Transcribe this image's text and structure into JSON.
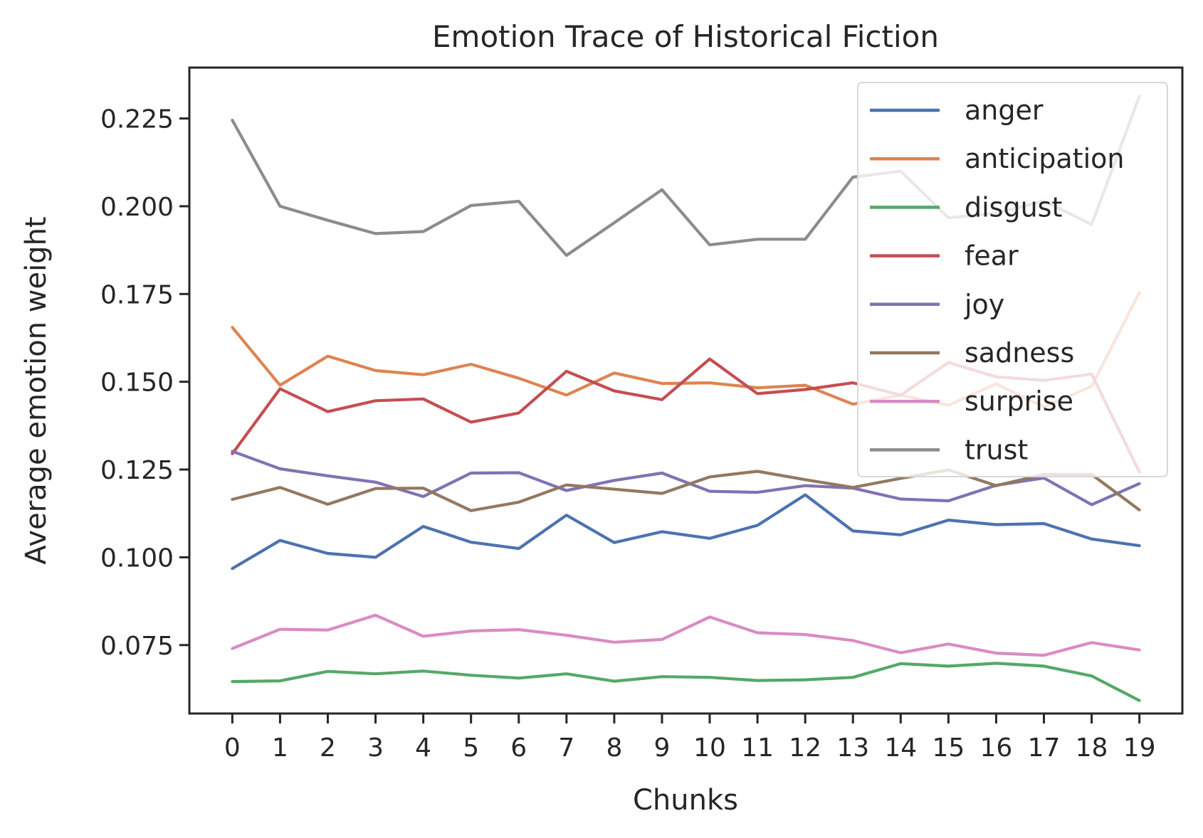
{
  "chart_data": {
    "type": "line",
    "title": "Emotion Trace of Historical Fiction",
    "xlabel": "Chunks",
    "ylabel": "Average emotion weight",
    "x": [
      0,
      1,
      2,
      3,
      4,
      5,
      6,
      7,
      8,
      9,
      10,
      11,
      12,
      13,
      14,
      15,
      16,
      17,
      18,
      19
    ],
    "x_tick_labels": [
      "0",
      "1",
      "2",
      "3",
      "4",
      "5",
      "6",
      "7",
      "8",
      "9",
      "10",
      "11",
      "12",
      "13",
      "14",
      "15",
      "16",
      "17",
      "18",
      "19"
    ],
    "y_ticks": [
      0.075,
      0.1,
      0.125,
      0.15,
      0.175,
      0.2,
      0.225
    ],
    "y_tick_labels": [
      "0.075",
      "0.100",
      "0.125",
      "0.150",
      "0.175",
      "0.200",
      "0.225"
    ],
    "xlim": [
      -0.9,
      19.9
    ],
    "ylim": [
      0.0555,
      0.2395
    ],
    "grid": false,
    "legend_position": "top-right",
    "series": [
      {
        "name": "anger",
        "color": "#4c72b0",
        "values": [
          0.0968,
          0.1048,
          0.1011,
          0.1,
          0.1088,
          0.1043,
          0.1025,
          0.112,
          0.1042,
          0.1073,
          0.1054,
          0.1091,
          0.1178,
          0.1075,
          0.1064,
          0.1106,
          0.1093,
          0.1096,
          0.1052,
          0.1033
        ]
      },
      {
        "name": "anticipation",
        "color": "#dd8452",
        "values": [
          0.1655,
          0.149,
          0.1573,
          0.1532,
          0.152,
          0.155,
          0.151,
          0.1462,
          0.1525,
          0.1495,
          0.1497,
          0.1483,
          0.149,
          0.1436,
          0.1462,
          0.1433,
          0.1494,
          0.1428,
          0.1487,
          0.1754
        ]
      },
      {
        "name": "disgust",
        "color": "#55a868",
        "values": [
          0.0646,
          0.0648,
          0.0675,
          0.0668,
          0.0676,
          0.0664,
          0.0656,
          0.0668,
          0.0647,
          0.066,
          0.0658,
          0.0649,
          0.0651,
          0.0658,
          0.0697,
          0.069,
          0.0698,
          0.069,
          0.0662,
          0.0592
        ]
      },
      {
        "name": "fear",
        "color": "#c44e52",
        "values": [
          0.1295,
          0.148,
          0.1415,
          0.1446,
          0.1451,
          0.1385,
          0.1411,
          0.153,
          0.1474,
          0.1449,
          0.1565,
          0.1466,
          0.1478,
          0.1497,
          0.1462,
          0.1555,
          0.1514,
          0.1504,
          0.1522,
          0.1243
        ]
      },
      {
        "name": "joy",
        "color": "#8172b3",
        "values": [
          0.1302,
          0.1252,
          0.1232,
          0.1214,
          0.1173,
          0.124,
          0.1241,
          0.119,
          0.1219,
          0.124,
          0.1188,
          0.1185,
          0.1204,
          0.1197,
          0.1166,
          0.1161,
          0.1205,
          0.1226,
          0.115,
          0.121
        ]
      },
      {
        "name": "sadness",
        "color": "#937860",
        "values": [
          0.1165,
          0.1199,
          0.1151,
          0.1196,
          0.1197,
          0.1133,
          0.1157,
          0.1206,
          0.1194,
          0.1182,
          0.1229,
          0.1245,
          0.1221,
          0.1199,
          0.1225,
          0.1249,
          0.1204,
          0.1236,
          0.1236,
          0.1135
        ]
      },
      {
        "name": "surprise",
        "color": "#da8bc3",
        "values": [
          0.074,
          0.0795,
          0.0793,
          0.0835,
          0.0775,
          0.079,
          0.0794,
          0.0778,
          0.0758,
          0.0766,
          0.083,
          0.0785,
          0.078,
          0.0763,
          0.0728,
          0.0753,
          0.0727,
          0.0721,
          0.0757,
          0.0736
        ]
      },
      {
        "name": "trust",
        "color": "#8c8c8c",
        "values": [
          0.2245,
          0.2,
          0.196,
          0.1922,
          0.1928,
          0.2002,
          0.2014,
          0.186,
          0.1953,
          0.2047,
          0.189,
          0.1906,
          0.1906,
          0.2083,
          0.21,
          0.1967,
          0.198,
          0.2015,
          0.1948,
          0.2313
        ]
      }
    ]
  }
}
